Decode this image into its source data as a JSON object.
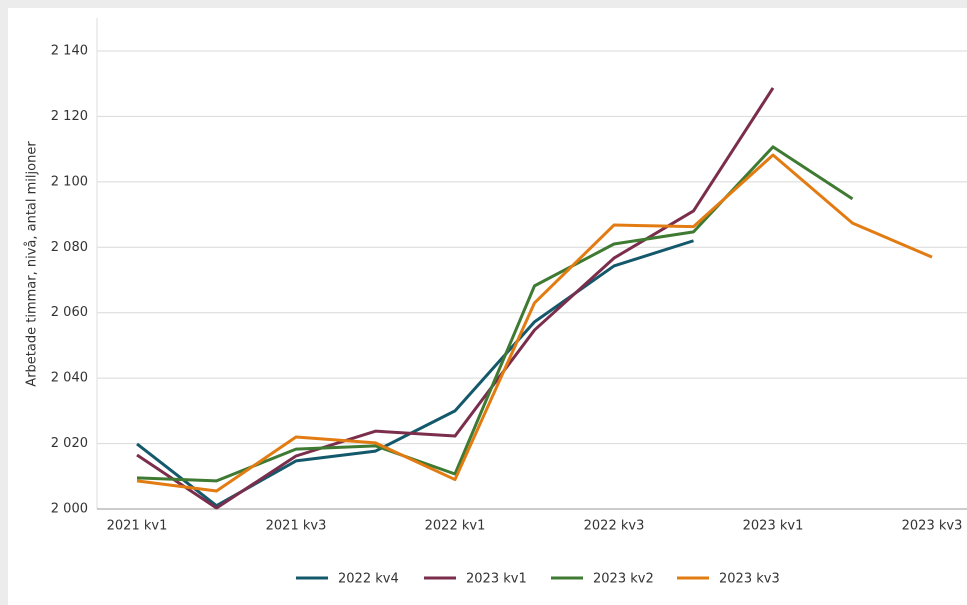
{
  "chart_data": {
    "type": "line",
    "y_label": "Arbetade timmar, nivå, antal miljoner",
    "categories": [
      "2021 kv1",
      null,
      "2021 kv3",
      null,
      "2022 kv1",
      null,
      "2022 kv3",
      null,
      "2023 kv1",
      null,
      "2023 kv3"
    ],
    "series": [
      {
        "name": "2022 kv4",
        "color": "#13586b",
        "values": [
          2019.9,
          2001,
          2014.7,
          2017.7,
          2030,
          2057.2,
          2074.3,
          2082,
          null,
          null,
          null
        ]
      },
      {
        "name": "2023 kv1",
        "color": "#7b2d4c",
        "values": [
          2016.5,
          2000.3,
          2016.2,
          2023.8,
          2022.3,
          2054.7,
          2076.7,
          2091.1,
          2128.7,
          null,
          null
        ]
      },
      {
        "name": "2023 kv2",
        "color": "#3f7a33",
        "values": [
          2009.5,
          2008.6,
          2018.3,
          2019.3,
          2010.7,
          2068.2,
          2081,
          2084.7,
          2110.7,
          2094.8,
          null
        ]
      },
      {
        "name": "2023 kv3",
        "color": "#e27c12",
        "values": [
          2008.6,
          2005.5,
          2022,
          2020.2,
          2009,
          2063,
          2086.8,
          2086.3,
          2108.2,
          2087.4,
          2077
        ]
      }
    ],
    "ylim": [
      2000,
      2140
    ],
    "yticks": [
      {
        "value": 2000,
        "label": "2 000"
      },
      {
        "value": 2020,
        "label": "2 020"
      },
      {
        "value": 2040,
        "label": "2 040"
      },
      {
        "value": 2060,
        "label": "2 060"
      },
      {
        "value": 2080,
        "label": "2 080"
      },
      {
        "value": 2100,
        "label": "2 100"
      },
      {
        "value": 2120,
        "label": "2 120"
      },
      {
        "value": 2140,
        "label": "2 140"
      }
    ],
    "grid": true,
    "legend": "bottom"
  }
}
